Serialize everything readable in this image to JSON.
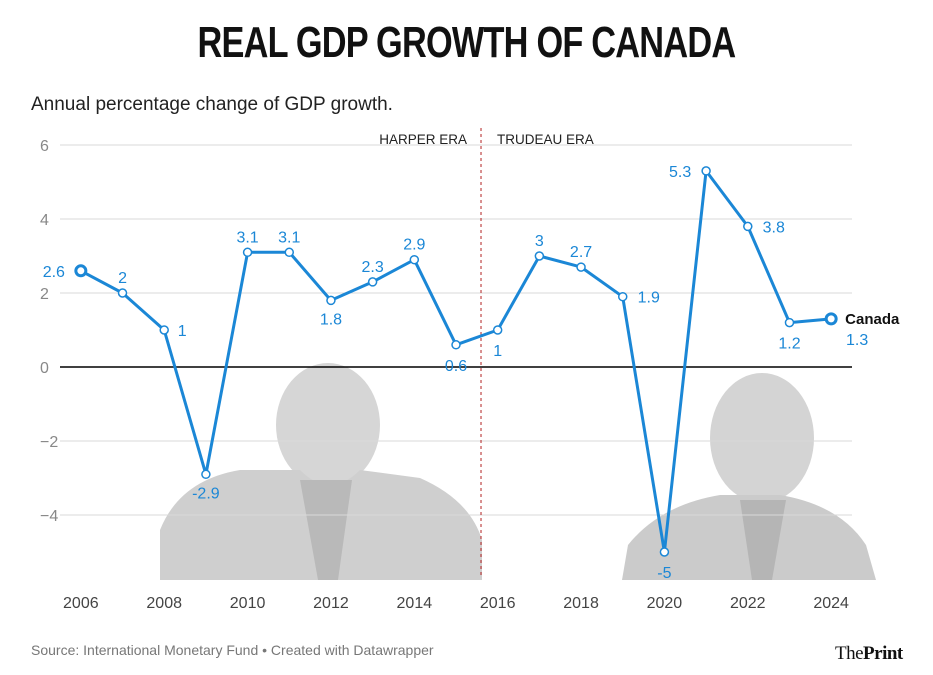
{
  "title": "REAL GDP GROWTH OF CANADA",
  "subtitle": "Annual percentage change of GDP growth.",
  "source": "Source: International Monetary Fund • Created with Datawrapper",
  "brand": {
    "part1": "The",
    "part2": "Print"
  },
  "colors": {
    "line": "#1b87d6",
    "grid": "#d9d9d9",
    "zero": "#000000",
    "divider": "#b22222",
    "photo": "#cfcfcf"
  },
  "chart_data": {
    "type": "line",
    "title": "REAL GDP GROWTH OF CANADA",
    "subtitle": "Annual percentage change of GDP growth.",
    "xlabel": "",
    "ylabel": "",
    "x": [
      2006,
      2007,
      2008,
      2009,
      2010,
      2011,
      2012,
      2013,
      2014,
      2015,
      2016,
      2017,
      2018,
      2019,
      2020,
      2021,
      2022,
      2023,
      2024
    ],
    "series": [
      {
        "name": "Canada",
        "values": [
          2.6,
          2,
          1,
          -2.9,
          3.1,
          3.1,
          1.8,
          2.3,
          2.9,
          0.6,
          1,
          3,
          2.7,
          1.9,
          -5,
          5.3,
          3.8,
          1.2,
          1.3
        ]
      }
    ],
    "data_labels": [
      "2.6",
      "2",
      "1",
      "-2.9",
      "3.1",
      "3.1",
      "1.8",
      "2.3",
      "2.9",
      "0.6",
      "1",
      "3",
      "2.7",
      "1.9",
      "-5",
      "5.3",
      "3.8",
      "1.2",
      "1.3"
    ],
    "ylim": [
      -6,
      6
    ],
    "xlim": [
      2005.5,
      2024.5
    ],
    "yticks": [
      "6",
      "4",
      "2",
      "0",
      "−2",
      "−4"
    ],
    "ytick_values": [
      6,
      4,
      2,
      0,
      -2,
      -4
    ],
    "xticks": [
      "2006",
      "2008",
      "2010",
      "2012",
      "2014",
      "2016",
      "2018",
      "2020",
      "2022",
      "2024"
    ],
    "xtick_values": [
      2006,
      2008,
      2010,
      2012,
      2014,
      2016,
      2018,
      2020,
      2022,
      2024
    ],
    "grid": true,
    "annotations": [
      {
        "text": "HARPER ERA",
        "at_x": 2015.6,
        "side": "left"
      },
      {
        "text": "TRUDEAU ERA",
        "at_x": 2015.6,
        "side": "right"
      }
    ],
    "divider_x": 2015.6,
    "series_label": "Canada"
  }
}
